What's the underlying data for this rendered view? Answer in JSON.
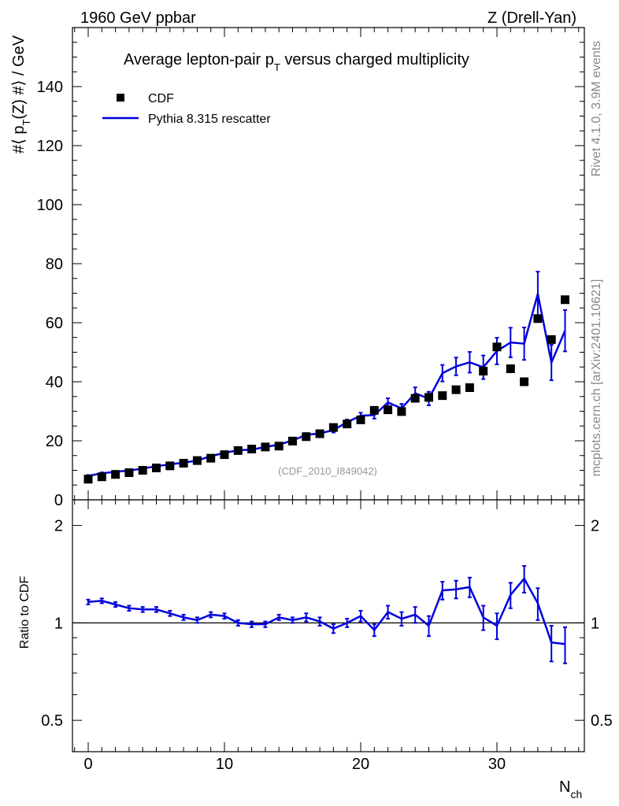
{
  "header": {
    "left": "1960 GeV ppbar",
    "right": "Z (Drell-Yan)"
  },
  "side_labels": {
    "rivet": "Rivet 4.1.0,  3.9M events",
    "mcplots": "mcplots.cern.ch [arXiv:2401.10621]"
  },
  "colors": {
    "data": "#000000",
    "mc": "#0000dd",
    "ref_line": "#000000",
    "ref_label": "#999999"
  },
  "chart_data": [
    {
      "type": "scatter",
      "panel": "main",
      "title_main": "Average lepton-pair p",
      "title_sub": "T",
      "title_rest": " versus charged multiplicity",
      "ylabel_pre": "#⟨ p",
      "ylabel_sub": "T",
      "ylabel_post": "(Z) #⟩ / GeV",
      "ylim": [
        0,
        160
      ],
      "yticks": [
        0,
        20,
        40,
        60,
        80,
        100,
        120,
        140
      ],
      "ytick_labels": [
        "0",
        "20",
        "40",
        "60",
        "80",
        "100",
        "120",
        "140"
      ],
      "xlim": [
        -1,
        36
      ],
      "ref_label": "(CDF_2010_I849042)",
      "legend": [
        {
          "name": "CDF",
          "marker": "square",
          "color": "#000000"
        },
        {
          "name": "Pythia 8.315 rescatter",
          "marker": "line",
          "color": "#0000dd"
        }
      ],
      "series": [
        {
          "name": "CDF",
          "x": [
            0,
            1,
            2,
            3,
            4,
            5,
            6,
            7,
            8,
            9,
            10,
            11,
            12,
            13,
            14,
            15,
            16,
            17,
            18,
            19,
            20,
            21,
            22,
            23,
            24,
            25,
            26,
            27,
            28,
            29,
            30,
            31,
            32,
            33,
            34,
            35
          ],
          "y": [
            7.0,
            7.8,
            8.6,
            9.2,
            10.0,
            10.8,
            11.5,
            12.4,
            13.3,
            14.1,
            15.3,
            16.7,
            17.2,
            17.9,
            18.2,
            19.9,
            21.4,
            22.4,
            24.5,
            25.7,
            27.1,
            30.3,
            30.5,
            29.9,
            34.4,
            34.7,
            35.3,
            37.3,
            38.0,
            43.6,
            51.8,
            44.4,
            40.0,
            61.4,
            54.3,
            67.8
          ]
        },
        {
          "name": "Pythia 8.315 rescatter",
          "x": [
            0,
            1,
            2,
            3,
            4,
            5,
            6,
            7,
            8,
            9,
            10,
            11,
            12,
            13,
            14,
            15,
            16,
            17,
            18,
            19,
            20,
            21,
            22,
            23,
            24,
            25,
            26,
            27,
            28,
            29,
            30,
            31,
            32,
            33,
            34,
            35
          ],
          "y": [
            8.1,
            9.0,
            9.5,
            9.9,
            10.6,
            11.4,
            12.0,
            12.6,
            13.3,
            14.8,
            15.9,
            16.8,
            17.0,
            17.9,
            18.7,
            20.1,
            22.0,
            22.5,
            23.6,
            26.3,
            28.5,
            28.7,
            33.0,
            31.0,
            36.1,
            34.3,
            42.9,
            45.2,
            46.6,
            44.9,
            50.4,
            53.3,
            52.9,
            69.8,
            46.5,
            57.3
          ],
          "err": [
            0.3,
            0.3,
            0.3,
            0.3,
            0.3,
            0.3,
            0.3,
            0.3,
            0.3,
            0.3,
            0.4,
            0.4,
            0.4,
            0.5,
            0.5,
            0.5,
            0.6,
            0.7,
            0.8,
            0.9,
            1.0,
            1.2,
            1.4,
            1.5,
            2.0,
            2.3,
            2.8,
            3.0,
            3.5,
            4.0,
            4.5,
            5.0,
            5.5,
            7.5,
            6.0,
            7.0
          ]
        }
      ]
    },
    {
      "type": "line",
      "panel": "ratio",
      "ylabel": "Ratio to CDF",
      "ylim": [
        0.4,
        2.4
      ],
      "log": true,
      "yticks": [
        0.5,
        1,
        2
      ],
      "ytick_labels": [
        "0.5",
        "1",
        "2"
      ],
      "xlim": [
        -1,
        36
      ],
      "xticks": [
        0,
        10,
        20,
        30
      ],
      "xtick_labels": [
        "0",
        "10",
        "20",
        "30"
      ],
      "xlabel_main": "N",
      "xlabel_sub": "ch",
      "series": [
        {
          "name": "Pythia 8.315 rescatter / CDF",
          "x": [
            0,
            1,
            2,
            3,
            4,
            5,
            6,
            7,
            8,
            9,
            10,
            11,
            12,
            13,
            14,
            15,
            16,
            17,
            18,
            19,
            20,
            21,
            22,
            23,
            24,
            25,
            26,
            27,
            28,
            29,
            30,
            31,
            32,
            33,
            34,
            35
          ],
          "y": [
            1.16,
            1.17,
            1.14,
            1.11,
            1.1,
            1.1,
            1.07,
            1.04,
            1.02,
            1.06,
            1.05,
            1.0,
            0.99,
            0.99,
            1.04,
            1.02,
            1.04,
            1.01,
            0.96,
            1.0,
            1.05,
            0.95,
            1.08,
            1.03,
            1.06,
            0.98,
            1.26,
            1.27,
            1.29,
            1.04,
            0.98,
            1.22,
            1.37,
            1.15,
            0.87,
            0.86
          ],
          "err": [
            0.02,
            0.02,
            0.02,
            0.02,
            0.02,
            0.02,
            0.02,
            0.02,
            0.02,
            0.02,
            0.02,
            0.02,
            0.02,
            0.02,
            0.02,
            0.02,
            0.03,
            0.03,
            0.03,
            0.03,
            0.04,
            0.04,
            0.05,
            0.05,
            0.06,
            0.07,
            0.08,
            0.08,
            0.09,
            0.09,
            0.09,
            0.11,
            0.13,
            0.13,
            0.11,
            0.11
          ]
        }
      ]
    }
  ]
}
